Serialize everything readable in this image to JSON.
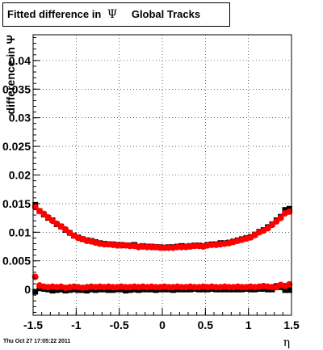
{
  "title": {
    "prefix": "Fitted difference in",
    "symbol": "Ψ",
    "suffix": "Global Tracks"
  },
  "timestamp": "Thu Oct 27 17:05:22 2011",
  "colors": {
    "series_black": "#000000",
    "series_red": "#ff0000",
    "frame": "#000000",
    "grid": "#000000"
  },
  "chart_data": {
    "type": "scatter",
    "title": "Fitted difference in Ψ   Global Tracks",
    "xlabel": "η",
    "ylabel": "difference in Ψ",
    "xlim": [
      -1.5,
      1.5
    ],
    "ylim": [
      -0.0045,
      0.0445
    ],
    "grid": true,
    "x_ticks": [
      -1.5,
      -1,
      -0.5,
      0,
      0.5,
      1,
      1.5
    ],
    "x_tick_labels": [
      "-1.5",
      "-1",
      "-0.5",
      "0",
      "0.5",
      "1",
      "1.5"
    ],
    "y_ticks": [
      0,
      0.005,
      0.01,
      0.015,
      0.02,
      0.025,
      0.03,
      0.035,
      0.04
    ],
    "y_tick_labels": [
      "0",
      "0.005",
      "0.01",
      "0.015",
      "0.02",
      "0.025",
      "0.03",
      "0.035",
      "0.04"
    ],
    "x": [
      -1.475,
      -1.425,
      -1.375,
      -1.325,
      -1.275,
      -1.225,
      -1.175,
      -1.125,
      -1.075,
      -1.025,
      -0.975,
      -0.925,
      -0.875,
      -0.825,
      -0.775,
      -0.725,
      -0.675,
      -0.625,
      -0.575,
      -0.525,
      -0.475,
      -0.425,
      -0.375,
      -0.325,
      -0.275,
      -0.225,
      -0.175,
      -0.125,
      -0.075,
      -0.025,
      0.025,
      0.075,
      0.125,
      0.175,
      0.225,
      0.275,
      0.325,
      0.375,
      0.425,
      0.475,
      0.525,
      0.575,
      0.625,
      0.675,
      0.725,
      0.775,
      0.825,
      0.875,
      0.925,
      0.975,
      1.025,
      1.075,
      1.125,
      1.175,
      1.225,
      1.275,
      1.325,
      1.375,
      1.425,
      1.475
    ],
    "series": [
      {
        "color": "#000000",
        "marker": "square",
        "values": [
          0.0148,
          0.0137,
          0.0131,
          0.0125,
          0.0121,
          0.0114,
          0.011,
          0.0104,
          0.0099,
          0.0094,
          0.0091,
          0.0088,
          0.0086,
          0.0085,
          0.0083,
          0.0081,
          0.008,
          0.0079,
          0.0079,
          0.0078,
          0.0078,
          0.0077,
          0.0077,
          0.0078,
          0.0075,
          0.0076,
          0.0075,
          0.0075,
          0.0074,
          0.0074,
          0.0073,
          0.0074,
          0.0074,
          0.0075,
          0.0076,
          0.0075,
          0.0076,
          0.0077,
          0.0077,
          0.0076,
          0.0078,
          0.0079,
          0.0079,
          0.0081,
          0.0081,
          0.0082,
          0.0084,
          0.0086,
          0.0088,
          0.009,
          0.0092,
          0.0096,
          0.0101,
          0.0104,
          0.0109,
          0.0114,
          0.0121,
          0.0127,
          0.0139,
          0.0141
        ]
      },
      {
        "color": "#000000",
        "marker": "square",
        "values": [
          -0.0004,
          0.0002,
          0.0001,
          0.0,
          -0.0002,
          -0.0001,
          0.0,
          -0.0002,
          -0.0001,
          0.0,
          -0.0001,
          -0.0001,
          -0.0002,
          0.0,
          -0.0001,
          0.0,
          0.0,
          -0.0001,
          -0.0001,
          0.0,
          0.0,
          -0.0002,
          -0.0001,
          0.0,
          -0.0001,
          0.0,
          0.0,
          0.0,
          -0.0001,
          0.0,
          0.0,
          0.0,
          -0.0001,
          0.0,
          0.0,
          0.0,
          0.0,
          0.0001,
          0.0,
          0.0,
          0.0,
          0.0001,
          0.0,
          0.0,
          0.0,
          0.0,
          0.0,
          0.0,
          0.0,
          0.0001,
          0.0,
          0.0,
          0.0001,
          0.0001,
          0.0,
          0.0,
          0.0006,
          0.0004,
          -0.0001,
          -0.0001
        ]
      },
      {
        "color": "#ff0000",
        "marker": "circle",
        "values": [
          0.0144,
          0.0137,
          0.0132,
          0.0126,
          0.012,
          0.0115,
          0.011,
          0.0105,
          0.0099,
          0.0094,
          0.009,
          0.0088,
          0.0085,
          0.0084,
          0.0082,
          0.008,
          0.0079,
          0.0079,
          0.0078,
          0.0077,
          0.0077,
          0.0077,
          0.0076,
          0.0076,
          0.0074,
          0.0075,
          0.0074,
          0.0074,
          0.0074,
          0.0073,
          0.0073,
          0.0073,
          0.0073,
          0.0074,
          0.0074,
          0.0074,
          0.0075,
          0.0076,
          0.0076,
          0.0075,
          0.0077,
          0.0078,
          0.0078,
          0.0079,
          0.008,
          0.0081,
          0.0083,
          0.0085,
          0.0087,
          0.0089,
          0.0091,
          0.0095,
          0.01,
          0.0103,
          0.0107,
          0.0113,
          0.0119,
          0.0125,
          0.0133,
          0.0136
        ]
      },
      {
        "color": "#ff0000",
        "marker": "circle",
        "values": [
          0.0022,
          0.0007,
          0.0005,
          0.0004,
          0.0005,
          0.0004,
          0.0005,
          0.0003,
          0.0004,
          0.0005,
          0.0004,
          0.0003,
          0.0004,
          0.0005,
          0.0004,
          0.0005,
          0.0004,
          0.0005,
          0.0004,
          0.0004,
          0.0005,
          0.0004,
          0.0004,
          0.0005,
          0.0004,
          0.0005,
          0.0004,
          0.0005,
          0.0004,
          0.0004,
          0.0005,
          0.0004,
          0.0004,
          0.0005,
          0.0004,
          0.0004,
          0.0005,
          0.0004,
          0.0004,
          0.0005,
          0.0004,
          0.0005,
          0.0004,
          0.0004,
          0.0005,
          0.0004,
          0.0004,
          0.0005,
          0.0004,
          0.0004,
          0.0005,
          0.0004,
          0.0005,
          0.0006,
          0.0005,
          0.0004,
          0.0004,
          0.0008,
          0.0006,
          0.0009
        ]
      }
    ]
  }
}
